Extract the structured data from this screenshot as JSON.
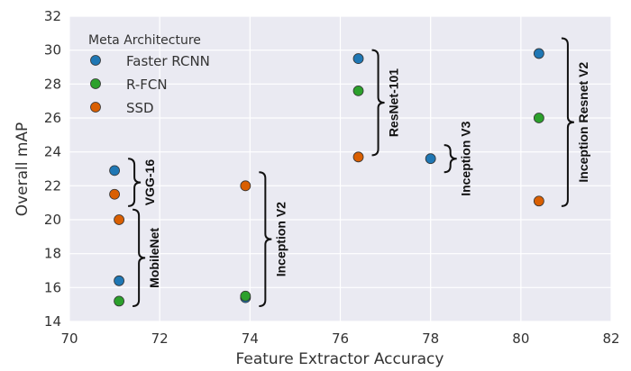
{
  "chart_data": {
    "type": "scatter",
    "xlabel": "Feature Extractor Accuracy",
    "ylabel": "Overall mAP",
    "xlim": [
      70,
      82
    ],
    "ylim": [
      14,
      32
    ],
    "x_ticks": [
      70,
      72,
      74,
      76,
      78,
      80,
      82
    ],
    "y_ticks": [
      14,
      16,
      18,
      20,
      22,
      24,
      26,
      28,
      30,
      32
    ],
    "grid": true,
    "background": "#eaeaf2",
    "legend": {
      "title": "Meta Architecture",
      "placement": "top-left"
    },
    "series": [
      {
        "name": "Faster RCNN",
        "color": "#1f77b4",
        "points": [
          [
            71.0,
            22.9
          ],
          [
            71.1,
            16.4
          ],
          [
            73.9,
            15.4
          ],
          [
            76.4,
            29.5
          ],
          [
            78.0,
            23.6
          ],
          [
            80.4,
            29.8
          ]
        ]
      },
      {
        "name": "R-FCN",
        "color": "#2ca02c",
        "points": [
          [
            71.1,
            15.2
          ],
          [
            73.9,
            15.5
          ],
          [
            76.4,
            27.6
          ],
          [
            80.4,
            26.0
          ]
        ]
      },
      {
        "name": "SSD",
        "color": "#d95f02",
        "points": [
          [
            71.0,
            21.5
          ],
          [
            71.1,
            20.0
          ],
          [
            73.9,
            22.0
          ],
          [
            76.4,
            23.7
          ],
          [
            80.4,
            21.1
          ]
        ]
      }
    ],
    "annotations": [
      {
        "text": "VGG-16",
        "x": 71.3,
        "y_range": [
          20.8,
          23.6
        ]
      },
      {
        "text": "MobileNet",
        "x": 71.4,
        "y_range": [
          14.9,
          20.6
        ]
      },
      {
        "text": "Inception V2",
        "x": 74.2,
        "y_range": [
          14.9,
          22.8
        ]
      },
      {
        "text": "ResNet-101",
        "x": 76.7,
        "y_range": [
          23.8,
          30.0
        ]
      },
      {
        "text": "Inception V3",
        "x": 78.3,
        "y_range": [
          22.8,
          24.4
        ]
      },
      {
        "text": "Inception Resnet V2",
        "x": 80.9,
        "y_range": [
          20.8,
          30.7
        ]
      }
    ]
  }
}
